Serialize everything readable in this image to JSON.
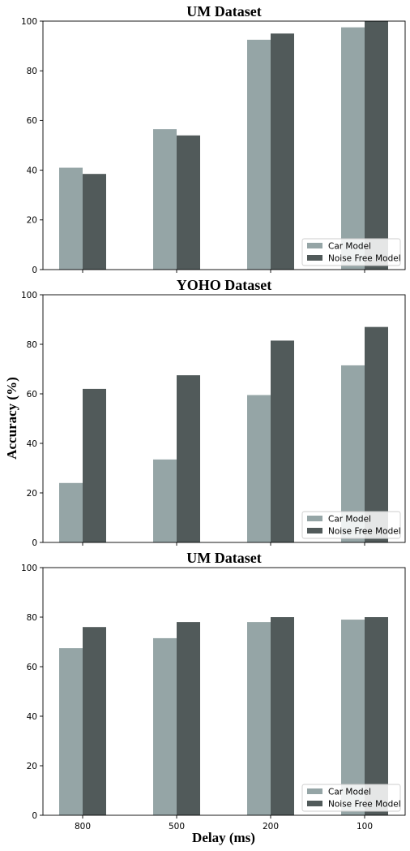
{
  "figure": {
    "ylabel": "Accuracy (%)",
    "xlabel": "Delay (ms)"
  },
  "colors": {
    "car": "#95a5a6",
    "noise_free": "#515a5a"
  },
  "chart_data": [
    {
      "type": "bar",
      "title": "UM Dataset",
      "categories": [
        "800",
        "500",
        "200",
        "100"
      ],
      "series": [
        {
          "name": "Car Model",
          "values": [
            41,
            56.5,
            92.5,
            97.5
          ]
        },
        {
          "name": "Noise Free Model",
          "values": [
            38.5,
            54,
            95,
            100
          ]
        }
      ],
      "ylim": [
        0,
        100
      ],
      "yticks": [
        "0",
        "20",
        "40",
        "60",
        "80",
        "100"
      ],
      "legend": "lower-right",
      "grid": false
    },
    {
      "type": "bar",
      "title": "YOHO Dataset",
      "categories": [
        "800",
        "500",
        "200",
        "100"
      ],
      "series": [
        {
          "name": "Car Model",
          "values": [
            24,
            33.5,
            59.5,
            71.5
          ]
        },
        {
          "name": "Noise Free Model",
          "values": [
            62,
            67.5,
            81.5,
            87
          ]
        }
      ],
      "ylim": [
        0,
        100
      ],
      "yticks": [
        "0",
        "20",
        "40",
        "60",
        "80",
        "100"
      ],
      "legend": "lower-right",
      "grid": false
    },
    {
      "type": "bar",
      "title": "UM Dataset",
      "categories": [
        "800",
        "500",
        "200",
        "100"
      ],
      "series": [
        {
          "name": "Car Model",
          "values": [
            67.5,
            71.5,
            78,
            79
          ]
        },
        {
          "name": "Noise Free Model",
          "values": [
            76,
            78,
            80,
            80
          ]
        }
      ],
      "ylim": [
        0,
        100
      ],
      "yticks": [
        "0",
        "20",
        "40",
        "60",
        "80",
        "100"
      ],
      "legend": "lower-right",
      "grid": false,
      "show_xticklabels": true
    }
  ]
}
